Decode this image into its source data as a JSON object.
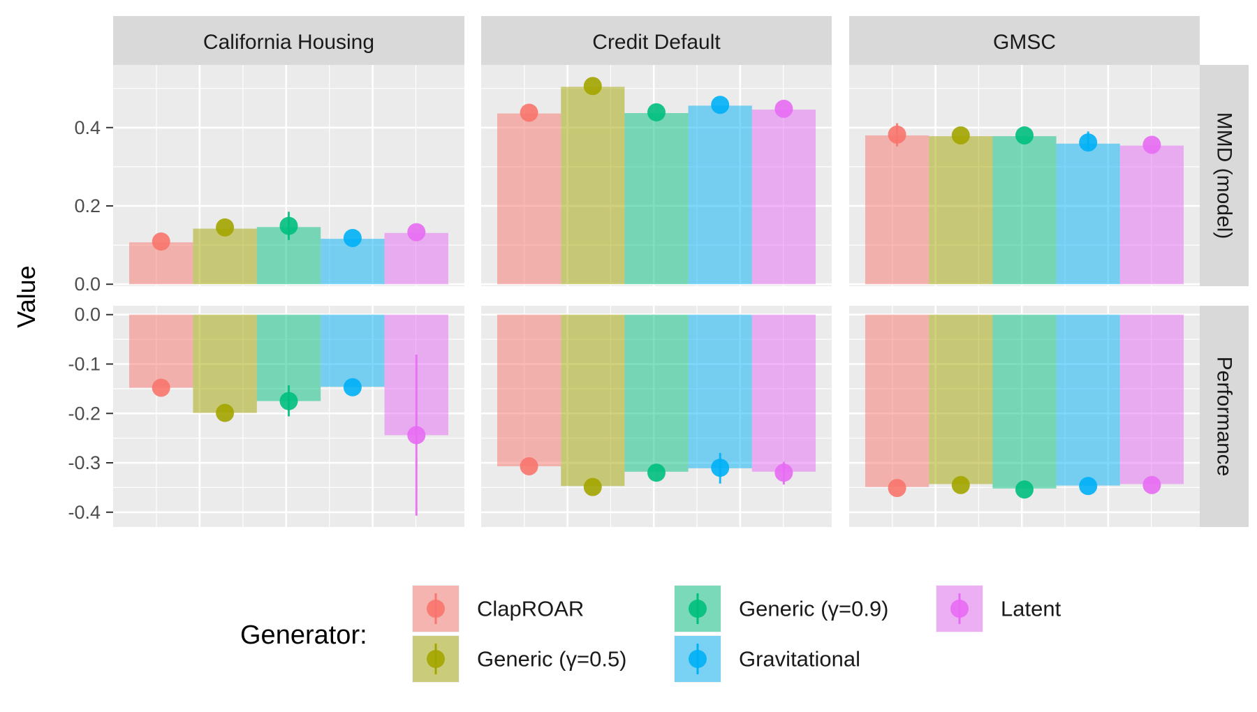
{
  "chart_data": {
    "type": "bar",
    "facet_columns": [
      "California Housing",
      "Credit Default",
      "GMSC"
    ],
    "facet_rows": [
      "MMD (model)",
      "Performance"
    ],
    "ylabel": "Value",
    "legend": {
      "title": "Generator:",
      "placement": "bottom"
    },
    "series": [
      {
        "name": "ClapROAR",
        "color": "#F8766D"
      },
      {
        "name": "Generic (γ=0.5)",
        "color": "#A3A500"
      },
      {
        "name": "Generic (γ=0.9)",
        "color": "#00BF7D"
      },
      {
        "name": "Gravitational",
        "color": "#00B0F6"
      },
      {
        "name": "Latent",
        "color": "#E76BF3"
      }
    ],
    "row_axes": [
      {
        "ylim": [
          -0.005,
          0.56
        ],
        "ticks": [
          "0.4",
          "0.2",
          "0.0"
        ],
        "tick_values": [
          0.4,
          0.2,
          0.0
        ]
      },
      {
        "ylim": [
          -0.43,
          0.018
        ],
        "ticks": [
          "0.0",
          "-0.1",
          "-0.2",
          "-0.3",
          "-0.4"
        ],
        "tick_values": [
          0.0,
          -0.1,
          -0.2,
          -0.3,
          -0.4
        ]
      }
    ],
    "panels": [
      {
        "row": 0,
        "col": 0,
        "bars": [
          0.107,
          0.142,
          0.146,
          0.116,
          0.131
        ],
        "points": [
          0.109,
          0.145,
          0.149,
          0.118,
          0.133
        ],
        "err_lo": [
          0.109,
          0.145,
          0.113,
          0.118,
          0.133
        ],
        "err_hi": [
          0.109,
          0.145,
          0.185,
          0.118,
          0.133
        ]
      },
      {
        "row": 0,
        "col": 1,
        "bars": [
          0.436,
          0.504,
          0.437,
          0.456,
          0.446
        ],
        "points": [
          0.438,
          0.506,
          0.439,
          0.458,
          0.448
        ],
        "err_lo": [
          0.438,
          0.506,
          0.439,
          0.458,
          0.448
        ],
        "err_hi": [
          0.438,
          0.506,
          0.439,
          0.458,
          0.448
        ]
      },
      {
        "row": 0,
        "col": 2,
        "bars": [
          0.38,
          0.378,
          0.378,
          0.359,
          0.354
        ],
        "points": [
          0.382,
          0.38,
          0.38,
          0.362,
          0.356
        ],
        "err_lo": [
          0.352,
          0.38,
          0.38,
          0.344,
          0.356
        ],
        "err_hi": [
          0.411,
          0.38,
          0.38,
          0.39,
          0.356
        ]
      },
      {
        "row": 1,
        "col": 0,
        "bars": [
          -0.148,
          -0.199,
          -0.175,
          -0.146,
          -0.244
        ],
        "points": [
          -0.148,
          -0.199,
          -0.175,
          -0.147,
          -0.244
        ],
        "err_lo": [
          -0.148,
          -0.199,
          -0.206,
          -0.147,
          -0.407
        ],
        "err_hi": [
          -0.148,
          -0.199,
          -0.143,
          -0.147,
          -0.081
        ]
      },
      {
        "row": 1,
        "col": 1,
        "bars": [
          -0.307,
          -0.347,
          -0.318,
          -0.311,
          -0.318
        ],
        "points": [
          -0.307,
          -0.349,
          -0.32,
          -0.31,
          -0.32
        ],
        "err_lo": [
          -0.307,
          -0.349,
          -0.32,
          -0.342,
          -0.344
        ],
        "err_hi": [
          -0.307,
          -0.349,
          -0.32,
          -0.28,
          -0.298
        ]
      },
      {
        "row": 1,
        "col": 2,
        "bars": [
          -0.349,
          -0.343,
          -0.352,
          -0.346,
          -0.343
        ],
        "points": [
          -0.351,
          -0.345,
          -0.354,
          -0.347,
          -0.345
        ],
        "err_lo": [
          -0.351,
          -0.345,
          -0.354,
          -0.347,
          -0.345
        ],
        "err_hi": [
          -0.351,
          -0.345,
          -0.354,
          -0.347,
          -0.345
        ]
      }
    ]
  }
}
